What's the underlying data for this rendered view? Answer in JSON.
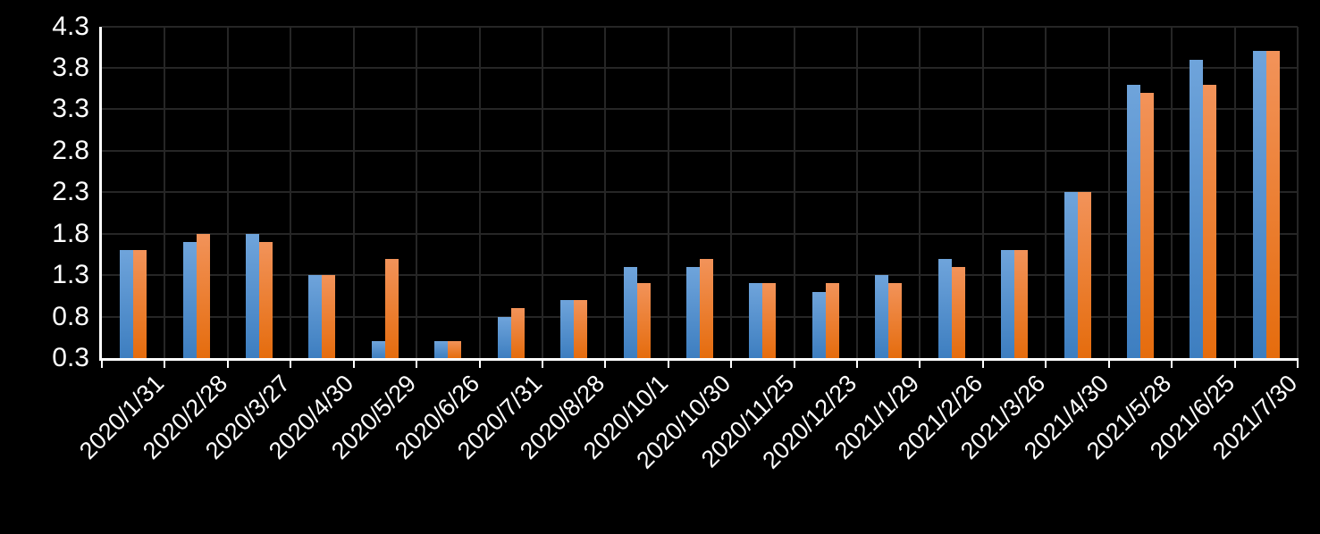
{
  "chart_data": {
    "type": "bar",
    "title": "",
    "categories": [
      "2020/1/31",
      "2020/2/28",
      "2020/3/27",
      "2020/4/30",
      "2020/5/29",
      "2020/6/26",
      "2020/7/31",
      "2020/8/28",
      "2020/10/1",
      "2020/10/30",
      "2020/11/25",
      "2020/12/23",
      "2021/1/29",
      "2021/2/26",
      "2021/3/26",
      "2021/4/30",
      "2021/5/28",
      "2021/6/25",
      "2021/7/30"
    ],
    "series": [
      {
        "name": "blue",
        "color_top": "#6FA4DB",
        "color_bottom": "#3D7EC0",
        "values": [
          1.6,
          1.7,
          1.8,
          1.3,
          0.5,
          0.5,
          0.8,
          1.0,
          1.4,
          1.4,
          1.2,
          1.1,
          1.3,
          1.5,
          1.6,
          2.3,
          3.6,
          3.9,
          4.0
        ]
      },
      {
        "name": "orange",
        "color_top": "#F2935A",
        "color_bottom": "#E56C0D",
        "values": [
          1.6,
          1.8,
          1.7,
          1.3,
          1.5,
          0.5,
          0.9,
          1.0,
          1.2,
          1.5,
          1.2,
          1.2,
          1.2,
          1.4,
          1.6,
          2.3,
          3.5,
          3.6,
          4.0
        ]
      }
    ],
    "xlabel": "",
    "ylabel": "",
    "ylim": [
      0.3,
      4.3
    ],
    "ytick_step": 0.5,
    "ytick_labels": [
      "0.3",
      "0.8",
      "1.3",
      "1.8",
      "2.3",
      "2.8",
      "3.3",
      "3.8",
      "4.3"
    ],
    "grid": true,
    "legend_position": "none",
    "background_color": "#000000",
    "axis_color": "#FFFFFF",
    "gridline_color": "#262626",
    "label_color": "#FFFFFF",
    "xtick_rotation_deg": 45
  }
}
